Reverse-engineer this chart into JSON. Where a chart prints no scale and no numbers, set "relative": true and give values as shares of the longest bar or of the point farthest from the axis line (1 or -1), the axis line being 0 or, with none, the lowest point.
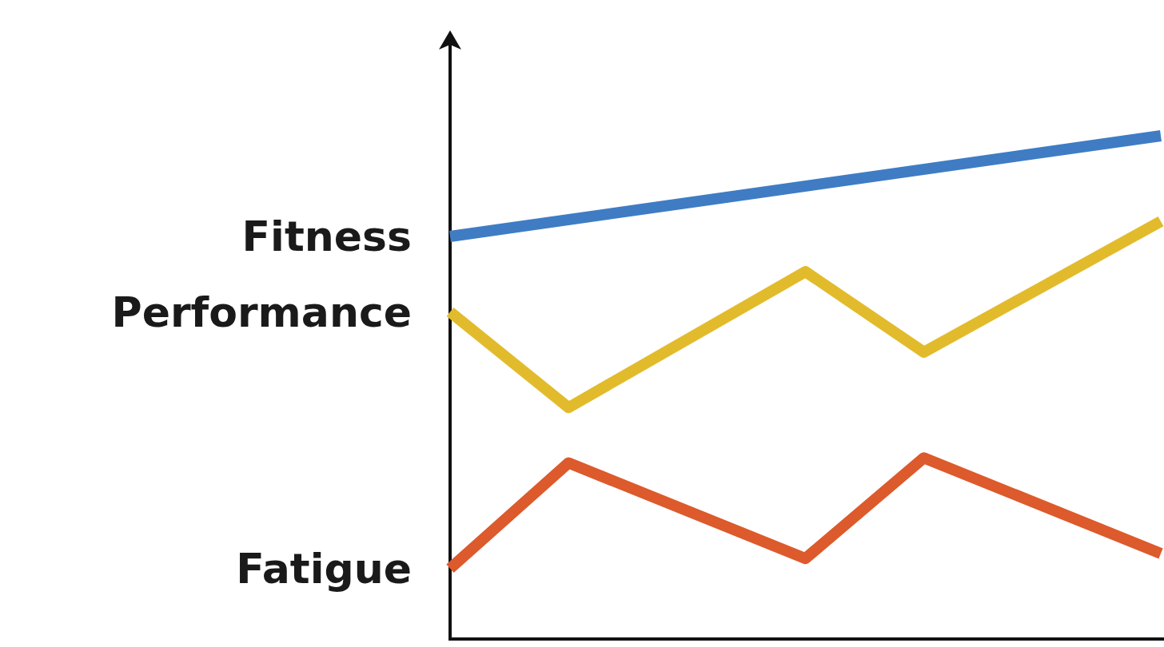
{
  "chart_data": {
    "type": "line",
    "relative": true,
    "categories": [
      null,
      null,
      null,
      null,
      null,
      null,
      null
    ],
    "tick_labels": false,
    "legend": false,
    "series": [
      {
        "name": "Fitness",
        "color": "#3f7cc4",
        "values": [
          0.8,
          null,
          null,
          null,
          null,
          null,
          1.0
        ]
      },
      {
        "name": "Performance",
        "color": "#e2bb2c",
        "values": [
          0.65,
          0.46,
          null,
          0.73,
          0.57,
          null,
          0.83
        ]
      },
      {
        "name": "Fatigue",
        "color": "#dc5a2c",
        "values": [
          0.14,
          0.35,
          null,
          0.16,
          0.36,
          null,
          0.17
        ]
      }
    ]
  }
}
